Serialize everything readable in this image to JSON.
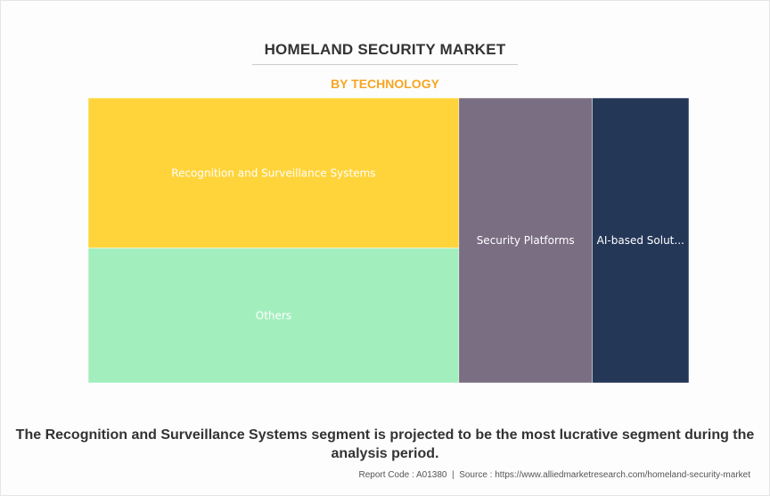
{
  "title": "HOMELAND SECURITY MARKET",
  "subtitle": "BY TECHNOLOGY",
  "chart_data": {
    "type": "treemap",
    "title": "HOMELAND SECURITY MARKET",
    "subtitle": "BY TECHNOLOGY",
    "segments": [
      {
        "label": "Recognition and Surveillance Systems",
        "display_label": "Recognition and Surveillance Systems",
        "value": 32.5,
        "color": "#ffd43b"
      },
      {
        "label": "Others",
        "display_label": "Others",
        "value": 29.2,
        "color": "#a2efbd"
      },
      {
        "label": "Security Platforms",
        "display_label": "Security Platforms",
        "value": 22.2,
        "color": "#7a6e83"
      },
      {
        "label": "AI-based Solutions",
        "display_label": "AI-based Solut...",
        "value": 16.1,
        "color": "#253757"
      }
    ]
  },
  "caption": "The Recognition and Surveillance Systems segment is projected to be the most lucrative segment during the analysis period.",
  "footer": {
    "report_code_label": "Report Code : A01380",
    "separator": "|",
    "source_text": "Source : https://www.alliedmarketresearch.com/homeland-security-market"
  }
}
